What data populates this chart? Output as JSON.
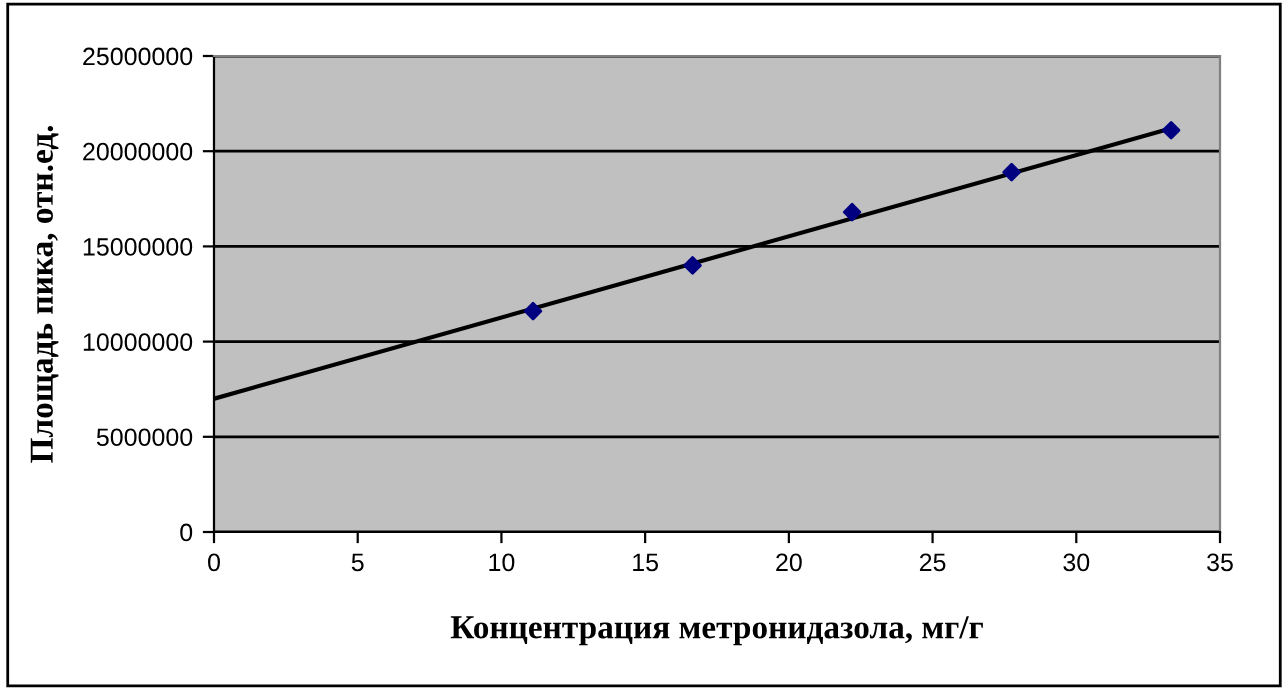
{
  "chart_data": {
    "type": "scatter",
    "xlabel": "Концентрация метронидазола, мг/г",
    "ylabel": "Площадь пика, отн.ед.",
    "xlim": [
      0,
      35
    ],
    "xticks": [
      0,
      5,
      10,
      15,
      20,
      25,
      30,
      35
    ],
    "ylim": [
      0,
      25000000
    ],
    "yticks": [
      0,
      5000000,
      10000000,
      15000000,
      20000000,
      25000000
    ],
    "grid": "y",
    "series": [
      {
        "color": "#000080",
        "marker": "diamond",
        "x": [
          11.1,
          16.65,
          22.2,
          27.75,
          33.3
        ],
        "values": [
          11600000,
          14000000,
          16800000,
          18900000,
          21100000
        ]
      },
      {
        "type": "line",
        "color": "#000000",
        "marker": "none",
        "x": [
          0,
          33.3
        ],
        "values": [
          7000000,
          21200000
        ]
      }
    ]
  }
}
